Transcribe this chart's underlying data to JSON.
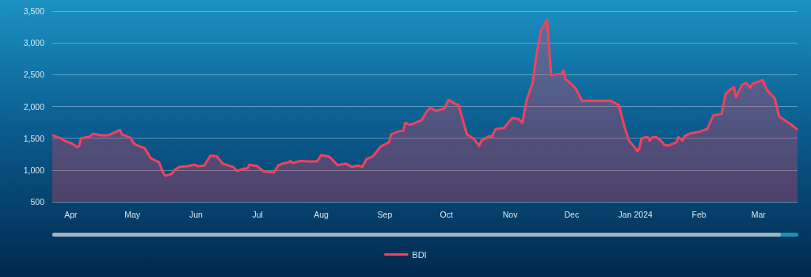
{
  "chart_data": {
    "type": "area",
    "x": [
      "2023-03-23",
      "2023-03-27",
      "2023-03-29",
      "2023-04-02",
      "2023-04-04",
      "2023-04-05",
      "2023-04-06",
      "2023-04-10",
      "2023-04-12",
      "2023-04-16",
      "2023-04-19",
      "2023-04-23",
      "2023-04-25",
      "2023-04-26",
      "2023-04-30",
      "2023-05-02",
      "2023-05-04",
      "2023-05-07",
      "2023-05-10",
      "2023-05-14",
      "2023-05-16",
      "2023-05-17",
      "2023-05-20",
      "2023-05-22",
      "2023-05-24",
      "2023-05-28",
      "2023-05-31",
      "2023-06-02",
      "2023-06-05",
      "2023-06-08",
      "2023-06-11",
      "2023-06-14",
      "2023-06-19",
      "2023-06-21",
      "2023-06-24",
      "2023-06-26",
      "2023-06-27",
      "2023-07-01",
      "2023-07-04",
      "2023-07-09",
      "2023-07-11",
      "2023-07-13",
      "2023-07-16",
      "2023-07-17",
      "2023-07-18",
      "2023-07-22",
      "2023-07-25",
      "2023-07-30",
      "2023-08-01",
      "2023-08-05",
      "2023-08-09",
      "2023-08-13",
      "2023-08-16",
      "2023-08-19",
      "2023-08-21",
      "2023-08-23",
      "2023-08-26",
      "2023-08-30",
      "2023-09-03",
      "2023-09-04",
      "2023-09-07",
      "2023-09-10",
      "2023-09-11",
      "2023-09-13",
      "2023-09-16",
      "2023-09-19",
      "2023-09-21",
      "2023-09-23",
      "2023-09-26",
      "2023-09-30",
      "2023-10-02",
      "2023-10-05",
      "2023-10-07",
      "2023-10-08",
      "2023-10-11",
      "2023-10-14",
      "2023-10-17",
      "2023-10-18",
      "2023-10-22",
      "2023-10-23",
      "2023-10-25",
      "2023-10-29",
      "2023-11-02",
      "2023-11-05",
      "2023-11-07",
      "2023-11-09",
      "2023-11-12",
      "2023-11-14",
      "2023-11-16",
      "2023-11-19",
      "2023-11-21",
      "2023-11-26",
      "2023-11-27",
      "2023-11-28",
      "2023-12-01",
      "2023-12-03",
      "2023-12-06",
      "2023-12-20",
      "2023-12-24",
      "2023-12-27",
      "2023-12-29",
      "2024-01-01",
      "2024-01-02",
      "2024-01-03",
      "2024-01-04",
      "2024-01-07",
      "2024-01-08",
      "2024-01-09",
      "2024-01-11",
      "2024-01-14",
      "2024-01-15",
      "2024-01-17",
      "2024-01-21",
      "2024-01-22",
      "2024-01-24",
      "2024-01-25",
      "2024-01-28",
      "2024-02-01",
      "2024-02-05",
      "2024-02-08",
      "2024-02-12",
      "2024-02-14",
      "2024-02-18",
      "2024-02-19",
      "2024-02-22",
      "2024-02-24",
      "2024-02-26",
      "2024-02-27",
      "2024-03-03",
      "2024-03-05",
      "2024-03-09",
      "2024-03-11",
      "2024-03-17",
      "2024-03-20"
    ],
    "series": [
      {
        "name": "BDI",
        "color": "#f5405e",
        "values": [
          1550,
          1500,
          1460,
          1410,
          1360,
          1370,
          1500,
          1520,
          1570,
          1545,
          1545,
          1600,
          1630,
          1560,
          1510,
          1410,
          1380,
          1345,
          1185,
          1120,
          960,
          910,
          935,
          1010,
          1050,
          1060,
          1085,
          1060,
          1070,
          1225,
          1220,
          1100,
          1050,
          985,
          1020,
          1025,
          1085,
          1060,
          975,
          960,
          1070,
          1100,
          1120,
          1145,
          1110,
          1145,
          1135,
          1135,
          1235,
          1210,
          1075,
          1100,
          1050,
          1070,
          1050,
          1170,
          1210,
          1370,
          1435,
          1560,
          1600,
          1620,
          1745,
          1710,
          1745,
          1785,
          1905,
          1980,
          1930,
          1970,
          2105,
          2045,
          2020,
          1895,
          1560,
          1500,
          1380,
          1460,
          1535,
          1520,
          1645,
          1660,
          1820,
          1805,
          1745,
          2095,
          2370,
          2840,
          3190,
          3365,
          2490,
          2515,
          2565,
          2430,
          2345,
          2280,
          2090,
          2090,
          2020,
          1645,
          1460,
          1345,
          1295,
          1345,
          1500,
          1520,
          1460,
          1510,
          1520,
          1445,
          1395,
          1385,
          1435,
          1520,
          1460,
          1535,
          1580,
          1600,
          1645,
          1860,
          1880,
          2205,
          2305,
          2145,
          2340,
          2370,
          2295,
          2355,
          2415,
          2265,
          2120,
          1845,
          1710,
          1635
        ]
      }
    ],
    "xlim": [
      "2023-03-23",
      "2024-03-20"
    ],
    "xticks": [
      {
        "value": "2023-04-01",
        "label": "Apr"
      },
      {
        "value": "2023-05-01",
        "label": "May"
      },
      {
        "value": "2023-06-01",
        "label": "Jun"
      },
      {
        "value": "2023-07-01",
        "label": "Jul"
      },
      {
        "value": "2023-08-01",
        "label": "Aug"
      },
      {
        "value": "2023-09-01",
        "label": "Sep"
      },
      {
        "value": "2023-10-01",
        "label": "Oct"
      },
      {
        "value": "2023-11-01",
        "label": "Nov"
      },
      {
        "value": "2023-12-01",
        "label": "Dec"
      },
      {
        "value": "2024-01-01",
        "label": "Jan 2024"
      },
      {
        "value": "2024-02-01",
        "label": "Feb"
      },
      {
        "value": "2024-03-01",
        "label": "Mar"
      }
    ],
    "ylim": [
      500,
      3500
    ],
    "yticks": [
      500,
      {
        "value": 1000,
        "label": "1,000"
      },
      {
        "value": 1500,
        "label": "1,500"
      },
      {
        "value": 2000,
        "label": "2,000"
      },
      {
        "value": 2500,
        "label": "2,500"
      },
      {
        "value": 3000,
        "label": "3,000"
      },
      {
        "value": 3500,
        "label": "3,500"
      }
    ],
    "grid": "y",
    "legend": "bottom",
    "marker": "none"
  }
}
